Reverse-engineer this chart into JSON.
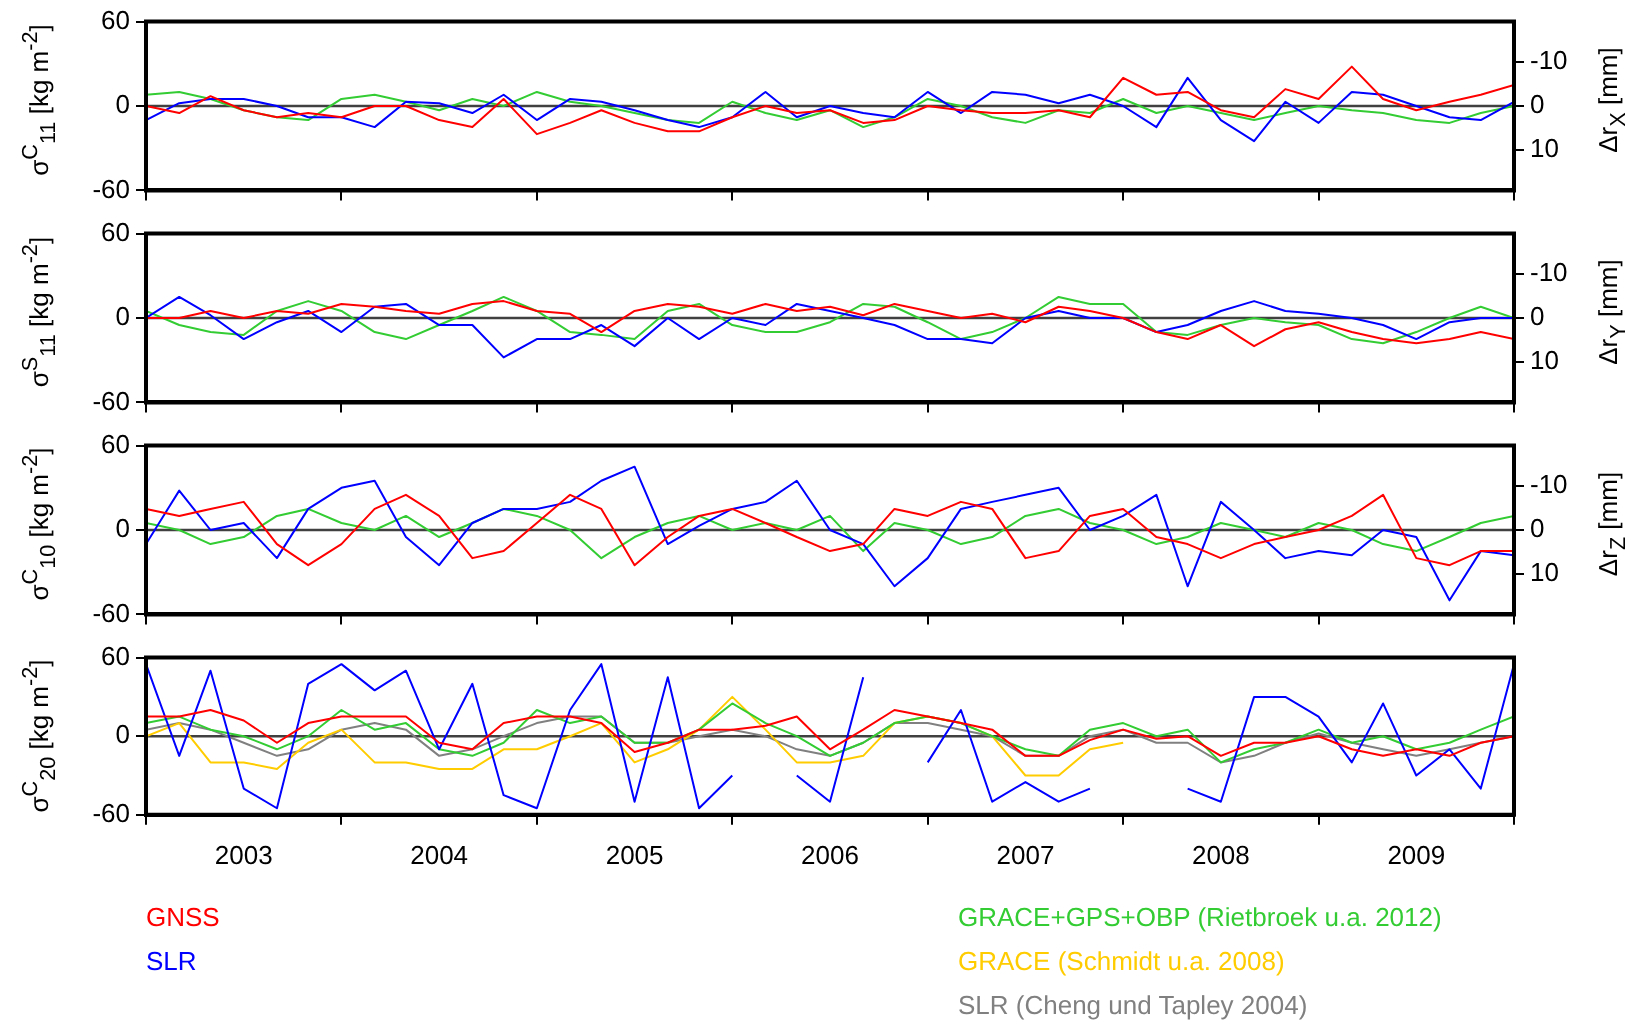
{
  "chart_data": [
    {
      "type": "line",
      "ylabel": "σ$^{C}$$_{11}$ [kg m$^{-2}$]",
      "y2label": "Δr$_{X}$ [mm]",
      "x": [
        2003,
        2003.17,
        2003.33,
        2003.5,
        2003.67,
        2003.83,
        2004,
        2004.17,
        2004.33,
        2004.5,
        2004.67,
        2004.83,
        2005,
        2005.17,
        2005.33,
        2005.5,
        2005.67,
        2005.83,
        2006,
        2006.17,
        2006.33,
        2006.5,
        2006.67,
        2006.83,
        2007,
        2007.17,
        2007.33,
        2007.5,
        2007.67,
        2007.83,
        2008,
        2008.17,
        2008.33,
        2008.5,
        2008.67,
        2008.83,
        2009,
        2009.17,
        2009.33,
        2009.5,
        2009.67,
        2009.83,
        2010
      ],
      "series": [
        {
          "color": "#ff0000",
          "values": [
            0,
            -5,
            7,
            -3,
            -8,
            -5,
            -8,
            0,
            0,
            -10,
            -15,
            5,
            -20,
            -12,
            -3,
            -12,
            -18,
            -18,
            -8,
            0,
            -5,
            -3,
            -12,
            -10,
            0,
            -3,
            -5,
            -5,
            -3,
            -8,
            20,
            8,
            10,
            -3,
            -8,
            12,
            5,
            28,
            5,
            -3,
            3,
            8,
            15
          ]
        },
        {
          "color": "#0000ff",
          "values": [
            -10,
            2,
            5,
            5,
            0,
            -8,
            -8,
            -15,
            3,
            2,
            -5,
            8,
            -10,
            5,
            3,
            -3,
            -10,
            -15,
            -8,
            10,
            -8,
            0,
            -5,
            -8,
            10,
            -5,
            10,
            8,
            2,
            8,
            0,
            -15,
            20,
            -10,
            -25,
            3,
            -12,
            10,
            8,
            0,
            -8,
            -10,
            3
          ]
        },
        {
          "color": "#33cc33",
          "values": [
            8,
            10,
            5,
            -3,
            -8,
            -10,
            5,
            8,
            3,
            -3,
            5,
            0,
            10,
            3,
            0,
            -5,
            -10,
            -12,
            3,
            -5,
            -10,
            -3,
            -15,
            -8,
            5,
            0,
            -8,
            -12,
            -3,
            -5,
            5,
            -5,
            0,
            -5,
            -10,
            -5,
            0,
            -3,
            -5,
            -10,
            -12,
            -5,
            0
          ]
        }
      ],
      "xlim": [
        2003,
        2010
      ],
      "xticks": [
        {
          "value": 2003,
          "label": null
        },
        {
          "value": 2004,
          "label": null
        },
        {
          "value": 2005,
          "label": null
        },
        {
          "value": 2006,
          "label": null
        },
        {
          "value": 2007,
          "label": null
        },
        {
          "value": 2008,
          "label": null
        },
        {
          "value": 2009,
          "label": null
        },
        {
          "value": 2010,
          "label": null
        }
      ],
      "ylim": [
        -60,
        60
      ],
      "yticks": [
        -60,
        0,
        60
      ],
      "y2lim": [
        19.3,
        -19.3
      ],
      "y2ticks": [
        -10,
        0,
        10
      ],
      "ref_lines": [
        {
          "axis": "y",
          "value": 0,
          "color": "#404040"
        }
      ],
      "tick_labels": "y",
      "grid": false,
      "legend": false
    },
    {
      "type": "line",
      "ylabel": "σ$^{S}$$_{11}$ [kg m$^{-2}$]",
      "y2label": "Δr$_{Y}$ [mm]",
      "x": [
        2003,
        2003.17,
        2003.33,
        2003.5,
        2003.67,
        2003.83,
        2004,
        2004.17,
        2004.33,
        2004.5,
        2004.67,
        2004.83,
        2005,
        2005.17,
        2005.33,
        2005.5,
        2005.67,
        2005.83,
        2006,
        2006.17,
        2006.33,
        2006.5,
        2006.67,
        2006.83,
        2007,
        2007.17,
        2007.33,
        2007.5,
        2007.67,
        2007.83,
        2008,
        2008.17,
        2008.33,
        2008.5,
        2008.67,
        2008.83,
        2009,
        2009.17,
        2009.33,
        2009.5,
        2009.67,
        2009.83,
        2010
      ],
      "series": [
        {
          "color": "#ff0000",
          "values": [
            0,
            0,
            5,
            0,
            5,
            3,
            10,
            8,
            5,
            3,
            10,
            12,
            5,
            3,
            -10,
            5,
            10,
            8,
            3,
            10,
            5,
            8,
            2,
            10,
            5,
            0,
            3,
            -3,
            8,
            5,
            0,
            -10,
            -15,
            -5,
            -20,
            -8,
            -3,
            -10,
            -15,
            -18,
            -15,
            -10,
            -15
          ]
        },
        {
          "color": "#0000ff",
          "values": [
            0,
            15,
            2,
            -15,
            -3,
            5,
            -10,
            8,
            10,
            -5,
            -5,
            -28,
            -15,
            -15,
            -5,
            -20,
            0,
            -15,
            0,
            -5,
            10,
            5,
            0,
            -5,
            -15,
            -15,
            -18,
            0,
            5,
            0,
            0,
            -10,
            -5,
            5,
            12,
            5,
            3,
            0,
            -5,
            -15,
            -3,
            0,
            0
          ]
        },
        {
          "color": "#33cc33",
          "values": [
            5,
            -5,
            -10,
            -12,
            5,
            12,
            5,
            -10,
            -15,
            -5,
            5,
            15,
            5,
            -10,
            -12,
            -15,
            5,
            10,
            -5,
            -10,
            -10,
            -3,
            10,
            8,
            -3,
            -15,
            -10,
            0,
            15,
            10,
            10,
            -10,
            -12,
            -5,
            0,
            -3,
            -5,
            -15,
            -18,
            -10,
            0,
            8,
            0
          ]
        }
      ],
      "xlim": [
        2003,
        2010
      ],
      "xticks": [
        {
          "value": 2003,
          "label": null
        },
        {
          "value": 2004,
          "label": null
        },
        {
          "value": 2005,
          "label": null
        },
        {
          "value": 2006,
          "label": null
        },
        {
          "value": 2007,
          "label": null
        },
        {
          "value": 2008,
          "label": null
        },
        {
          "value": 2009,
          "label": null
        },
        {
          "value": 2010,
          "label": null
        }
      ],
      "ylim": [
        -60,
        60
      ],
      "yticks": [
        -60,
        0,
        60
      ],
      "y2lim": [
        19.3,
        -19.3
      ],
      "y2ticks": [
        -10,
        0,
        10
      ],
      "ref_lines": [
        {
          "axis": "y",
          "value": 0,
          "color": "#404040"
        }
      ],
      "tick_labels": "y",
      "grid": false,
      "legend": false
    },
    {
      "type": "line",
      "ylabel": "σ$^{C}$$_{10}$ [kg m$^{-2}$]",
      "y2label": "Δr$_{Z}$ [mm]",
      "x": [
        2003,
        2003.17,
        2003.33,
        2003.5,
        2003.67,
        2003.83,
        2004,
        2004.17,
        2004.33,
        2004.5,
        2004.67,
        2004.83,
        2005,
        2005.17,
        2005.33,
        2005.5,
        2005.67,
        2005.83,
        2006,
        2006.17,
        2006.33,
        2006.5,
        2006.67,
        2006.83,
        2007,
        2007.17,
        2007.33,
        2007.5,
        2007.67,
        2007.83,
        2008,
        2008.17,
        2008.33,
        2008.5,
        2008.67,
        2008.83,
        2009,
        2009.17,
        2009.33,
        2009.5,
        2009.67,
        2009.83,
        2010
      ],
      "series": [
        {
          "color": "#ff0000",
          "values": [
            15,
            10,
            15,
            20,
            -10,
            -25,
            -10,
            15,
            25,
            10,
            -20,
            -15,
            5,
            25,
            15,
            -25,
            -5,
            10,
            15,
            5,
            -5,
            -15,
            -10,
            15,
            10,
            20,
            15,
            -20,
            -15,
            10,
            15,
            -5,
            -10,
            -20,
            -10,
            -5,
            0,
            10,
            25,
            -20,
            -25,
            -15,
            -15
          ]
        },
        {
          "color": "#0000ff",
          "values": [
            -10,
            28,
            0,
            5,
            -20,
            15,
            30,
            35,
            -5,
            -25,
            5,
            15,
            15,
            20,
            35,
            45,
            -10,
            3,
            15,
            20,
            35,
            0,
            -10,
            -40,
            -20,
            15,
            20,
            25,
            30,
            0,
            10,
            25,
            -40,
            20,
            0,
            -20,
            -15,
            -18,
            0,
            -5,
            -50,
            -15,
            -18
          ]
        },
        {
          "color": "#33cc33",
          "values": [
            5,
            0,
            -10,
            -5,
            10,
            15,
            5,
            0,
            10,
            -5,
            5,
            15,
            10,
            0,
            -20,
            -5,
            5,
            10,
            0,
            5,
            0,
            10,
            -15,
            5,
            0,
            -10,
            -5,
            10,
            15,
            5,
            0,
            -10,
            -5,
            5,
            0,
            -5,
            5,
            0,
            -10,
            -15,
            -5,
            5,
            10
          ]
        }
      ],
      "xlim": [
        2003,
        2010
      ],
      "xticks": [
        {
          "value": 2003,
          "label": null
        },
        {
          "value": 2004,
          "label": null
        },
        {
          "value": 2005,
          "label": null
        },
        {
          "value": 2006,
          "label": null
        },
        {
          "value": 2007,
          "label": null
        },
        {
          "value": 2008,
          "label": null
        },
        {
          "value": 2009,
          "label": null
        },
        {
          "value": 2010,
          "label": null
        }
      ],
      "ylim": [
        -60,
        60
      ],
      "yticks": [
        -60,
        0,
        60
      ],
      "y2lim": [
        19.3,
        -19.3
      ],
      "y2ticks": [
        -10,
        0,
        10
      ],
      "ref_lines": [
        {
          "axis": "y",
          "value": 0,
          "color": "#404040"
        }
      ],
      "tick_labels": "y",
      "grid": false,
      "legend": false
    },
    {
      "type": "line",
      "ylabel": "σ$^{C}$$_{20}$ [kg m$^{-2}$]",
      "x": [
        2003,
        2003.17,
        2003.33,
        2003.5,
        2003.67,
        2003.83,
        2004,
        2004.17,
        2004.33,
        2004.5,
        2004.67,
        2004.83,
        2005,
        2005.17,
        2005.33,
        2005.5,
        2005.67,
        2005.83,
        2006,
        2006.17,
        2006.33,
        2006.5,
        2006.67,
        2006.83,
        2007,
        2007.17,
        2007.33,
        2007.5,
        2007.67,
        2007.83,
        2008,
        2008.17,
        2008.33,
        2008.5,
        2008.67,
        2008.83,
        2009,
        2009.17,
        2009.33,
        2009.5,
        2009.67,
        2009.83,
        2010
      ],
      "series": [
        {
          "name": "GNSS",
          "color": "#ff0000",
          "values": [
            15,
            15,
            20,
            12,
            -5,
            10,
            15,
            15,
            15,
            -5,
            -10,
            10,
            15,
            15,
            10,
            -12,
            -5,
            5,
            5,
            8,
            15,
            -10,
            5,
            20,
            15,
            10,
            5,
            -15,
            -15,
            -3,
            5,
            -2,
            0,
            -15,
            -5,
            -5,
            0,
            -10,
            -15,
            -10,
            -15,
            -5,
            0
          ]
        },
        {
          "name": "SLR",
          "color": "#0000ff",
          "values": [
            55,
            -15,
            50,
            -40,
            -55,
            40,
            55,
            35,
            50,
            -10,
            40,
            -45,
            -55,
            20,
            55,
            -50,
            45,
            -55,
            -30,
            null,
            -30,
            -50,
            45,
            null,
            -20,
            20,
            -50,
            -35,
            -50,
            -40,
            null,
            null,
            -40,
            -50,
            30,
            30,
            15,
            -20,
            25,
            -30,
            -10,
            -40,
            55
          ]
        },
        {
          "name": "GRACE+GPS+OBP (Rietbroek u.a. 2012)",
          "color": "#33cc33",
          "values": [
            10,
            15,
            5,
            0,
            -10,
            0,
            20,
            5,
            10,
            -10,
            -15,
            -5,
            20,
            10,
            15,
            -5,
            -5,
            5,
            25,
            10,
            0,
            -15,
            -5,
            10,
            15,
            10,
            0,
            -10,
            -15,
            5,
            10,
            0,
            5,
            -20,
            -10,
            -5,
            5,
            -5,
            0,
            -10,
            -5,
            5,
            15
          ]
        },
        {
          "name": "GRACE (Schmidt u.a. 2008)",
          "color": "#ffcc00",
          "values": [
            0,
            10,
            -20,
            -20,
            -25,
            -5,
            5,
            -20,
            -20,
            -25,
            -25,
            -10,
            -10,
            0,
            10,
            -20,
            -10,
            5,
            30,
            5,
            -20,
            -20,
            -15,
            10,
            15,
            10,
            0,
            -30,
            -30,
            -10,
            -5,
            null,
            null,
            null,
            null,
            null,
            null,
            null,
            null,
            null,
            null,
            null,
            null
          ]
        },
        {
          "name": "SLR (Cheng und Tapley 2004)",
          "color": "#808080",
          "values": [
            5,
            10,
            5,
            -5,
            -15,
            -10,
            5,
            10,
            5,
            -15,
            -10,
            0,
            10,
            15,
            15,
            -5,
            -5,
            0,
            5,
            0,
            -10,
            -15,
            -5,
            10,
            10,
            5,
            0,
            -15,
            -15,
            0,
            5,
            -5,
            -5,
            -20,
            -15,
            -5,
            2,
            -5,
            -10,
            -15,
            -10,
            -5,
            0
          ]
        }
      ],
      "xlim": [
        2003,
        2010
      ],
      "xticks": [
        {
          "value": 2003,
          "label": null
        },
        {
          "value": 2003.5,
          "label": "2003"
        },
        {
          "value": 2004,
          "label": null
        },
        {
          "value": 2004.5,
          "label": "2004"
        },
        {
          "value": 2005,
          "label": null
        },
        {
          "value": 2005.5,
          "label": "2005"
        },
        {
          "value": 2006,
          "label": null
        },
        {
          "value": 2006.5,
          "label": "2006"
        },
        {
          "value": 2007,
          "label": null
        },
        {
          "value": 2007.5,
          "label": "2007"
        },
        {
          "value": 2008,
          "label": null
        },
        {
          "value": 2008.5,
          "label": "2008"
        },
        {
          "value": 2009,
          "label": null
        },
        {
          "value": 2009.5,
          "label": "2009"
        },
        {
          "value": 2010,
          "label": null
        }
      ],
      "ylim": [
        -60,
        60
      ],
      "yticks": [
        -60,
        0,
        60
      ],
      "ref_lines": [
        {
          "axis": "y",
          "value": 0,
          "color": "#404040"
        }
      ],
      "grid": false,
      "legend": "bottom"
    }
  ]
}
